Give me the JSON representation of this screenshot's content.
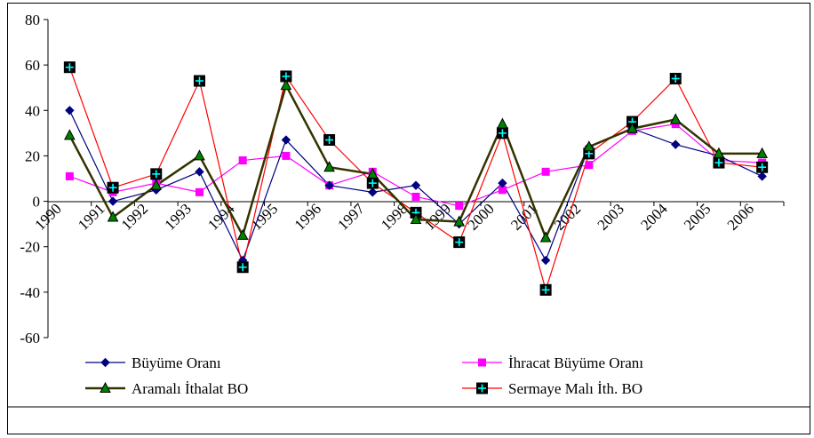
{
  "chart_data": {
    "type": "line",
    "title": "",
    "xlabel": "",
    "ylabel": "",
    "categories": [
      "1990",
      "1991",
      "1992",
      "1993",
      "1994",
      "1995",
      "1996",
      "1997",
      "1998",
      "1999",
      "2000",
      "2001",
      "2002",
      "2003",
      "2004",
      "2005",
      "2006"
    ],
    "ylim": [
      -60,
      80
    ],
    "yticks": [
      "80",
      "60",
      "40",
      "20",
      "0",
      "-20",
      "-40",
      "-60"
    ],
    "grid": false,
    "legend": "bottom",
    "series": [
      {
        "name": "Büyüme Oranı",
        "color": "#000080",
        "marker": "diamond",
        "values": [
          40,
          0,
          5,
          13,
          -26,
          27,
          7,
          4,
          7,
          -10,
          8,
          -26,
          24,
          32,
          25,
          20,
          11
        ]
      },
      {
        "name": "İhracat Büyüme Oranı",
        "color": "#ff00ff",
        "marker": "square",
        "values": [
          11,
          4,
          8,
          4,
          18,
          20,
          7,
          13,
          2,
          -2,
          5,
          13,
          16,
          31,
          34,
          18,
          17
        ]
      },
      {
        "name": "Aramalı İthalat BO",
        "color": "#333300",
        "marker": "triangle",
        "values": [
          29,
          -7,
          7,
          20,
          -15,
          51,
          15,
          12,
          -8,
          -9,
          34,
          -16,
          24,
          32,
          36,
          21,
          21
        ]
      },
      {
        "name": "Sermaye Malı İth. BO",
        "color": "#ff0000",
        "marker": "plus-square",
        "values": [
          59,
          6,
          12,
          53,
          -29,
          55,
          27,
          8,
          -5,
          -18,
          30,
          -39,
          21,
          35,
          54,
          17,
          15
        ]
      }
    ]
  }
}
